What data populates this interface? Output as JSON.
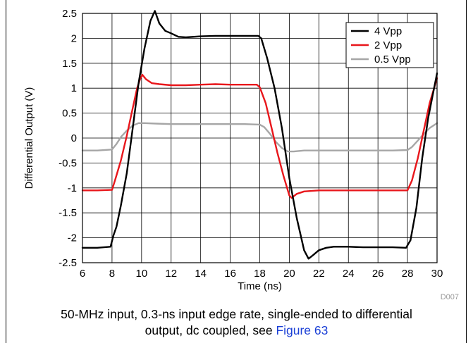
{
  "chart_data": {
    "type": "line",
    "xlabel": "Time (ns)",
    "ylabel": "Differential Output (V)",
    "xlim": [
      6,
      30
    ],
    "ylim": [
      -2.5,
      2.5
    ],
    "xticks": [
      "6",
      "8",
      "10",
      "12",
      "14",
      "16",
      "18",
      "20",
      "22",
      "24",
      "26",
      "28",
      "30"
    ],
    "yticks": [
      "2.5",
      "2",
      "1.5",
      "1",
      "0.5",
      "0",
      "-0.5",
      "-1",
      "-1.5",
      "-2",
      "-2.5"
    ],
    "grid": true,
    "legend_position": "top-right",
    "figure_id": "D007",
    "series": [
      {
        "name": "4 Vpp",
        "color": "#000000",
        "x": [
          6,
          7,
          7.9,
          8.1,
          8.3,
          8.6,
          9.0,
          9.4,
          9.8,
          10.2,
          10.6,
          10.9,
          11.2,
          11.6,
          12.0,
          12.5,
          13.0,
          14.0,
          15.0,
          16.0,
          17.0,
          17.9,
          18.1,
          18.5,
          19.0,
          19.5,
          20.0,
          20.5,
          21.0,
          21.3,
          21.6,
          22.0,
          22.5,
          23.0,
          24.0,
          25.0,
          26.0,
          27.0,
          27.9,
          28.2,
          28.6,
          29.0,
          29.4,
          29.8,
          30
        ],
        "values": [
          -2.2,
          -2.2,
          -2.18,
          -1.95,
          -1.78,
          -1.35,
          -0.7,
          0.2,
          1.1,
          1.8,
          2.35,
          2.55,
          2.3,
          2.15,
          2.1,
          2.03,
          2.02,
          2.04,
          2.05,
          2.05,
          2.05,
          2.05,
          2.0,
          1.6,
          1.0,
          0.2,
          -0.8,
          -1.6,
          -2.25,
          -2.42,
          -2.35,
          -2.25,
          -2.2,
          -2.18,
          -2.18,
          -2.19,
          -2.19,
          -2.19,
          -2.2,
          -2.05,
          -1.4,
          -0.4,
          0.4,
          1.0,
          1.3
        ]
      },
      {
        "name": "2 Vpp",
        "color": "#e8161b",
        "x": [
          6,
          7,
          8.0,
          8.2,
          8.6,
          9.0,
          9.4,
          9.7,
          9.9,
          10.05,
          10.3,
          10.7,
          11.2,
          12.0,
          13.0,
          14.0,
          15.0,
          16.0,
          17.0,
          17.8,
          18.0,
          18.4,
          18.8,
          19.2,
          19.6,
          20.0,
          20.15,
          20.5,
          21.0,
          22.0,
          23.0,
          24.0,
          25.0,
          26.0,
          27.0,
          28.0,
          28.3,
          28.7,
          29.1,
          29.5,
          29.9,
          30
        ],
        "values": [
          -1.05,
          -1.05,
          -1.04,
          -0.85,
          -0.45,
          0.05,
          0.6,
          1.0,
          1.18,
          1.27,
          1.18,
          1.1,
          1.08,
          1.06,
          1.06,
          1.07,
          1.08,
          1.07,
          1.07,
          1.07,
          1.02,
          0.7,
          0.2,
          -0.3,
          -0.75,
          -1.15,
          -1.2,
          -1.12,
          -1.07,
          -1.05,
          -1.05,
          -1.05,
          -1.05,
          -1.05,
          -1.05,
          -1.05,
          -0.85,
          -0.4,
          0.15,
          0.7,
          1.1,
          1.2
        ]
      },
      {
        "name": "0.5 Vpp",
        "color": "#a6a6a6",
        "x": [
          6,
          7,
          8.0,
          8.3,
          8.6,
          9.0,
          9.4,
          9.8,
          10.2,
          11.0,
          12.0,
          13.0,
          14.0,
          15.0,
          16.0,
          17.0,
          18.0,
          18.3,
          18.7,
          19.1,
          19.5,
          19.9,
          20.3,
          21.0,
          22.0,
          23.0,
          24.0,
          25.0,
          26.0,
          27.0,
          28.0,
          28.3,
          28.7,
          29.1,
          29.5,
          29.9,
          30
        ],
        "values": [
          -0.25,
          -0.25,
          -0.23,
          -0.12,
          0.02,
          0.15,
          0.25,
          0.3,
          0.3,
          0.29,
          0.28,
          0.28,
          0.28,
          0.28,
          0.28,
          0.28,
          0.27,
          0.22,
          0.08,
          -0.08,
          -0.2,
          -0.27,
          -0.27,
          -0.25,
          -0.25,
          -0.25,
          -0.25,
          -0.25,
          -0.25,
          -0.25,
          -0.24,
          -0.18,
          -0.05,
          0.08,
          0.2,
          0.28,
          0.3
        ]
      }
    ]
  },
  "caption": {
    "line1": "50-MHz input, 0.3-ns input edge rate, single-ended to differential",
    "line2_text": "output, dc coupled, see ",
    "line2_link": "Figure 63"
  }
}
